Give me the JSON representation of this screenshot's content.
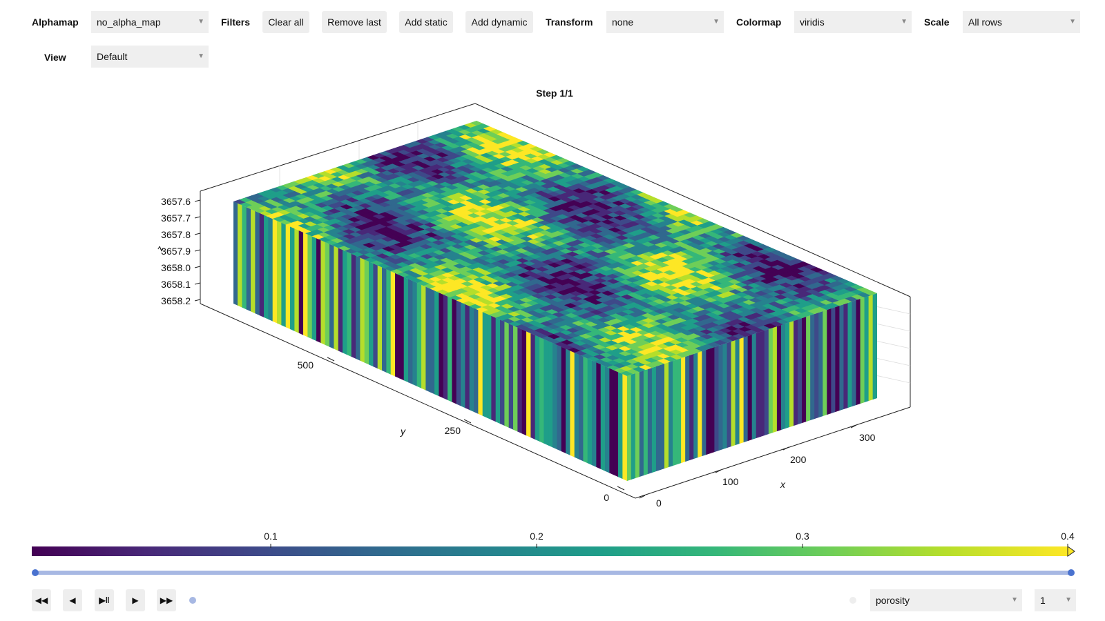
{
  "toolbar": {
    "alphamap_label": "Alphamap",
    "alphamap_value": "no_alpha_map",
    "filters_label": "Filters",
    "clear_all": "Clear all",
    "remove_last": "Remove last",
    "add_static": "Add static",
    "add_dynamic": "Add dynamic",
    "transform_label": "Transform",
    "transform_value": "none",
    "colormap_label": "Colormap",
    "colormap_value": "viridis",
    "scale_label": "Scale",
    "scale_value": "All rows",
    "view_label": "View",
    "view_value": "Default"
  },
  "plot": {
    "title": "Step 1/1",
    "z_label": "z",
    "y_label": "y",
    "x_label": "x",
    "z_ticks": [
      "3657.6",
      "3657.7",
      "3657.8",
      "3657.9",
      "3658.0",
      "3658.1",
      "3658.2"
    ],
    "y_ticks": [
      "500",
      "250",
      "0"
    ],
    "x_ticks": [
      "0",
      "100",
      "200",
      "300"
    ]
  },
  "colorbar": {
    "ticks": [
      "0.1",
      "0.2",
      "0.3",
      "0.4"
    ],
    "colormap": "viridis",
    "range": [
      0.01,
      0.4
    ]
  },
  "slider": {
    "start": 0,
    "end": 1,
    "color": "#4a72cf"
  },
  "controls": {
    "rewind_icon": "rewind-icon",
    "prev_icon": "step-back-icon",
    "playpause_icon": "play-pause-icon",
    "play_icon": "play-icon",
    "ff_icon": "fast-forward-icon",
    "variable_value": "porosity",
    "step_value": "1"
  },
  "colors": {
    "control_bg": "#efefef",
    "accent": "#4a72cf",
    "viridis": [
      "#440154",
      "#482878",
      "#3e4989",
      "#31688e",
      "#26828e",
      "#1f9e89",
      "#35b779",
      "#6ece58",
      "#b5de2b",
      "#fde725"
    ]
  }
}
